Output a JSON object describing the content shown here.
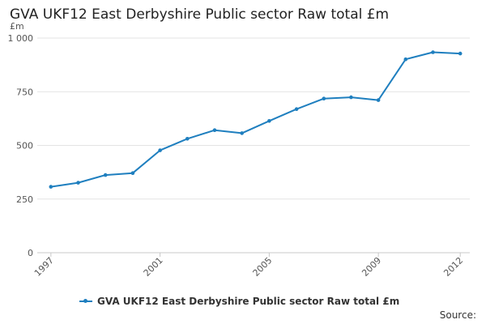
{
  "chart_data": {
    "type": "line",
    "title": "GVA UKF12 East Derbyshire Public sector Raw total £m",
    "ylabel": "£m",
    "xlabel": "",
    "ylim": [
      0,
      1000
    ],
    "yticks": [
      0,
      250,
      500,
      750,
      1000
    ],
    "ytick_labels": [
      "0",
      "250",
      "500",
      "750",
      "1 000"
    ],
    "xticks": [
      1997,
      2001,
      2005,
      2009,
      2012
    ],
    "xtick_labels": [
      "1997",
      "2001",
      "2005",
      "2009",
      "2012"
    ],
    "grid": true,
    "legend_position": "bottom",
    "series": [
      {
        "name": "GVA UKF12 East Derbyshire Public sector Raw total £m",
        "color": "#1f7fbf",
        "x": [
          1997,
          1998,
          1999,
          2000,
          2001,
          2002,
          2003,
          2004,
          2005,
          2006,
          2007,
          2008,
          2009,
          2010,
          2011,
          2012
        ],
        "values": [
          307,
          326,
          362,
          371,
          477,
          531,
          571,
          557,
          614,
          669,
          718,
          724,
          711,
          901,
          934,
          928
        ]
      }
    ]
  },
  "footer": {
    "source_label": "Source:"
  }
}
